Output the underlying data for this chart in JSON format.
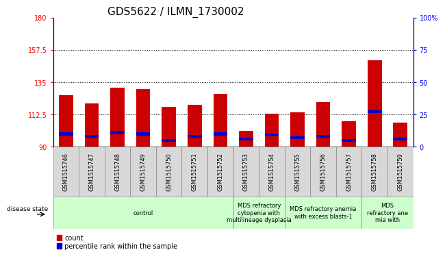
{
  "title": "GDS5622 / ILMN_1730002",
  "samples": [
    "GSM1515746",
    "GSM1515747",
    "GSM1515748",
    "GSM1515749",
    "GSM1515750",
    "GSM1515751",
    "GSM1515752",
    "GSM1515753",
    "GSM1515754",
    "GSM1515755",
    "GSM1515756",
    "GSM1515757",
    "GSM1515758",
    "GSM1515759"
  ],
  "count_values": [
    126,
    120,
    131,
    130,
    118,
    119,
    127,
    101,
    113,
    114,
    121,
    108,
    150,
    107
  ],
  "percentile_values": [
    10,
    8,
    11,
    10,
    5,
    8,
    10,
    6,
    9,
    7,
    8,
    5,
    27,
    6
  ],
  "ymin": 90,
  "ymax": 180,
  "yticks_left": [
    90,
    112.5,
    135,
    157.5,
    180
  ],
  "yticks_right": [
    0,
    25,
    50,
    75,
    100
  ],
  "bar_color": "#cc0000",
  "percentile_color": "#0000cc",
  "bar_width": 0.55,
  "groups": [
    {
      "label": "control",
      "start": 0,
      "end": 6
    },
    {
      "label": "MDS refractory\ncytopenia with\nmultilineage dysplasia",
      "start": 7,
      "end": 8
    },
    {
      "label": "MDS refractory anemia\nwith excess blasts-1",
      "start": 9,
      "end": 11
    },
    {
      "label": "MDS\nrefractory ane\nmia with",
      "start": 12,
      "end": 13
    }
  ],
  "group_color": "#ccffcc",
  "sample_cell_color": "#d8d8d8",
  "legend_count_label": "count",
  "legend_percentile_label": "percentile rank within the sample",
  "disease_state_label": "disease state",
  "title_fontsize": 11,
  "tick_fontsize": 7,
  "sample_fontsize": 6,
  "group_fontsize": 6,
  "legend_fontsize": 7
}
